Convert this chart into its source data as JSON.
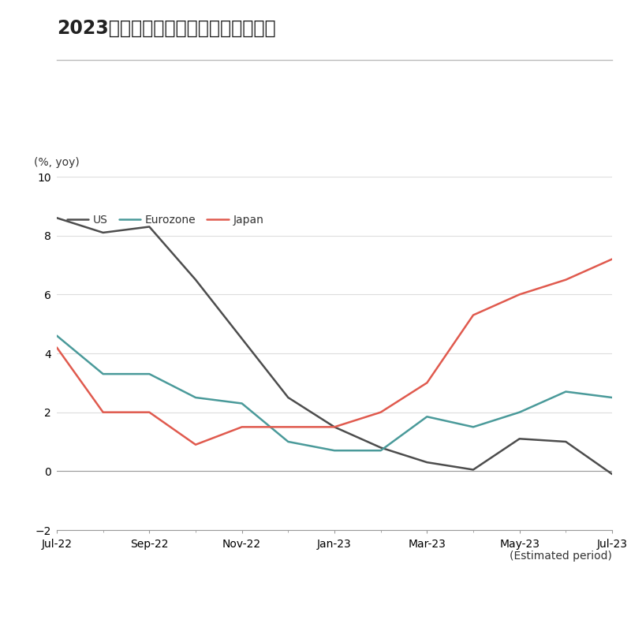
{
  "title": "2023財年企業盈餘成長預估值獲得上修",
  "ylabel": "(%, yoy)",
  "xlabel_note": "(Estimated period)",
  "ylim": [
    -2,
    10
  ],
  "yticks": [
    -2,
    0,
    2,
    4,
    6,
    8,
    10
  ],
  "x_labels": [
    "Jul-22",
    "Sep-22",
    "Nov-22",
    "Jan-23",
    "Mar-23",
    "May-23",
    "Jul-23"
  ],
  "series": {
    "US": {
      "color": "#4d4d4d",
      "x": [
        0,
        1,
        2,
        3,
        4,
        5,
        6,
        7,
        8,
        9,
        10,
        11,
        12
      ],
      "y": [
        8.6,
        8.1,
        8.3,
        6.5,
        4.5,
        2.5,
        1.5,
        0.8,
        0.3,
        0.05,
        1.1,
        1.0,
        -0.1
      ]
    },
    "Eurozone": {
      "color": "#4a9a9a",
      "x": [
        0,
        1,
        2,
        3,
        4,
        5,
        6,
        7,
        8,
        9,
        10,
        11,
        12
      ],
      "y": [
        4.6,
        3.3,
        3.3,
        2.5,
        2.3,
        1.0,
        0.7,
        0.7,
        1.85,
        1.5,
        2.0,
        2.7,
        2.5
      ]
    },
    "Japan": {
      "color": "#e05a4e",
      "x": [
        0,
        1,
        2,
        3,
        4,
        5,
        6,
        7,
        8,
        9,
        10,
        11,
        12
      ],
      "y": [
        4.2,
        2.0,
        2.0,
        0.9,
        1.5,
        1.5,
        1.5,
        2.0,
        3.0,
        5.3,
        6.0,
        6.5,
        7.2
      ]
    }
  },
  "legend_order": [
    "US",
    "Eurozone",
    "Japan"
  ],
  "background_color": "#ffffff",
  "title_fontsize": 17,
  "axis_label_fontsize": 10,
  "tick_fontsize": 10,
  "legend_fontsize": 10,
  "linewidth": 1.8
}
